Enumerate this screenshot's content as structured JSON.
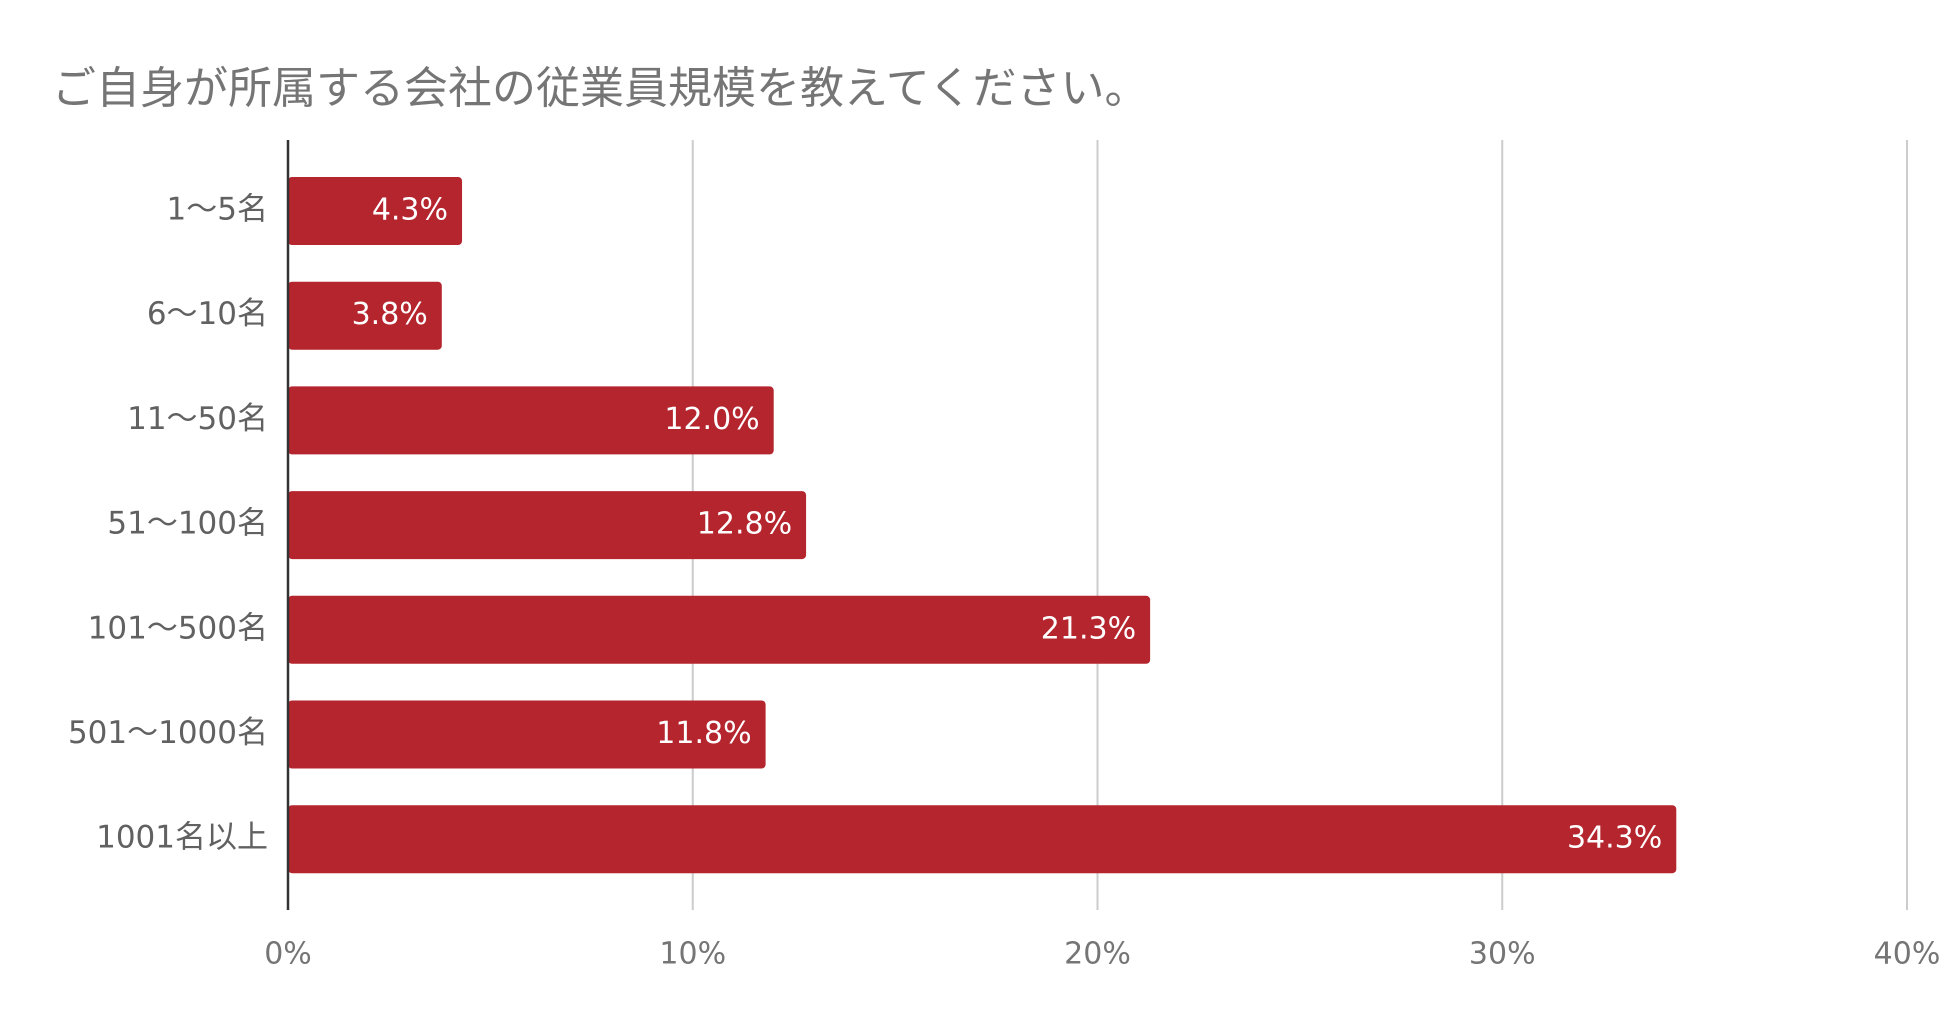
{
  "chart_data": {
    "type": "bar",
    "orientation": "horizontal",
    "title": "ご自身が所属する会社の従業員規模を教えてください。",
    "categories": [
      "1〜5名",
      "6〜10名",
      "11〜50名",
      "51〜100名",
      "101〜500名",
      "501〜1000名",
      "1001名以上"
    ],
    "values": [
      4.3,
      3.8,
      12.0,
      12.8,
      21.3,
      11.8,
      34.3
    ],
    "value_labels": [
      "4.3%",
      "3.8%",
      "12.0%",
      "12.8%",
      "21.3%",
      "11.8%",
      "34.3%"
    ],
    "xlim": [
      0,
      40
    ],
    "xticks": [
      0,
      10,
      20,
      30,
      40
    ],
    "xtick_labels": [
      "0%",
      "10%",
      "20%",
      "30%",
      "40%"
    ],
    "xlabel": "",
    "ylabel": "",
    "grid": true,
    "legend": "none",
    "bar_color": "#b5252e",
    "grid_color": "#cccccc",
    "axis_color": "#333333"
  }
}
